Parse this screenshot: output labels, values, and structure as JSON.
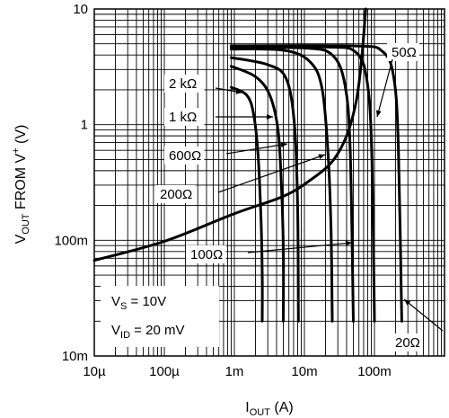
{
  "chart_data": {
    "type": "line",
    "x_axis": {
      "label_main": "I",
      "label_sub": "OUT",
      "label_unit": " (A)",
      "scale": "log",
      "range": [
        1e-05,
        1
      ],
      "tick_labels": [
        "10µ",
        "100µ",
        "1m",
        "10m",
        "100m"
      ]
    },
    "y_axis": {
      "label_main": "V",
      "label_sub": "OUT",
      "label_mid": " FROM V",
      "label_sup": "+",
      "label_unit": " (V)",
      "scale": "log",
      "range": [
        0.01,
        10
      ],
      "tick_labels": [
        "10m",
        "100m",
        "1",
        "10"
      ]
    },
    "grid": true,
    "series": [
      {
        "name": "2 kΩ",
        "points": [
          [
            0.0009,
            2.1
          ],
          [
            0.0015,
            1.8
          ],
          [
            0.0019,
            1.2
          ],
          [
            0.0022,
            0.5
          ],
          [
            0.0024,
            0.15
          ],
          [
            0.0025,
            0.05
          ],
          [
            0.0025,
            0.02
          ]
        ]
      },
      {
        "name": "1 kΩ",
        "points": [
          [
            0.0009,
            3.2
          ],
          [
            0.002,
            2.6
          ],
          [
            0.0032,
            1.8
          ],
          [
            0.0042,
            0.9
          ],
          [
            0.0047,
            0.3
          ],
          [
            0.005,
            0.08
          ],
          [
            0.005,
            0.02
          ]
        ]
      },
      {
        "name": "600Ω",
        "points": [
          [
            0.0009,
            3.8
          ],
          [
            0.003,
            3.3
          ],
          [
            0.0055,
            2.5
          ],
          [
            0.0072,
            1.0
          ],
          [
            0.008,
            0.2
          ],
          [
            0.0082,
            0.02
          ]
        ]
      },
      {
        "name": "200Ω",
        "points": [
          [
            0.0009,
            4.5
          ],
          [
            0.005,
            4.4
          ],
          [
            0.012,
            3.5
          ],
          [
            0.018,
            2.0
          ],
          [
            0.022,
            0.5
          ],
          [
            0.024,
            0.12
          ],
          [
            0.025,
            0.02
          ]
        ]
      },
      {
        "name": "100Ω",
        "points": [
          [
            0.0009,
            4.6
          ],
          [
            0.01,
            4.6
          ],
          [
            0.025,
            4.0
          ],
          [
            0.038,
            2.2
          ],
          [
            0.045,
            0.6
          ],
          [
            0.05,
            0.02
          ]
        ]
      },
      {
        "name": "50Ω",
        "points": [
          [
            0.0009,
            4.7
          ],
          [
            0.02,
            4.7
          ],
          [
            0.055,
            4.2
          ],
          [
            0.08,
            2.2
          ],
          [
            0.092,
            0.5
          ],
          [
            0.1,
            0.02
          ]
        ]
      },
      {
        "name": "20Ω",
        "points": [
          [
            0.0009,
            4.8
          ],
          [
            0.05,
            4.8
          ],
          [
            0.13,
            4.3
          ],
          [
            0.19,
            2.5
          ],
          [
            0.22,
            0.6
          ],
          [
            0.245,
            0.02
          ]
        ]
      },
      {
        "name": "",
        "points": [
          [
            1e-05,
            0.067
          ],
          [
            0.0001,
            0.098
          ],
          [
            0.001,
            0.17
          ],
          [
            0.005,
            0.24
          ],
          [
            0.012,
            0.33
          ],
          [
            0.025,
            0.48
          ],
          [
            0.04,
            0.8
          ],
          [
            0.055,
            1.6
          ],
          [
            0.065,
            3.5
          ],
          [
            0.075,
            10
          ]
        ]
      }
    ],
    "annotations": [
      {
        "text": "2 kΩ"
      },
      {
        "text": "1 kΩ"
      },
      {
        "text": "600Ω"
      },
      {
        "text": "200Ω"
      },
      {
        "text": "100Ω"
      },
      {
        "text": "50Ω"
      },
      {
        "text": "20Ω"
      }
    ],
    "conditions": {
      "vs_main": "V",
      "vs_sub": "S",
      "vs_rest": " = 10V",
      "vid_main": "V",
      "vid_sub": "ID",
      "vid_rest": " = 20 mV"
    }
  }
}
